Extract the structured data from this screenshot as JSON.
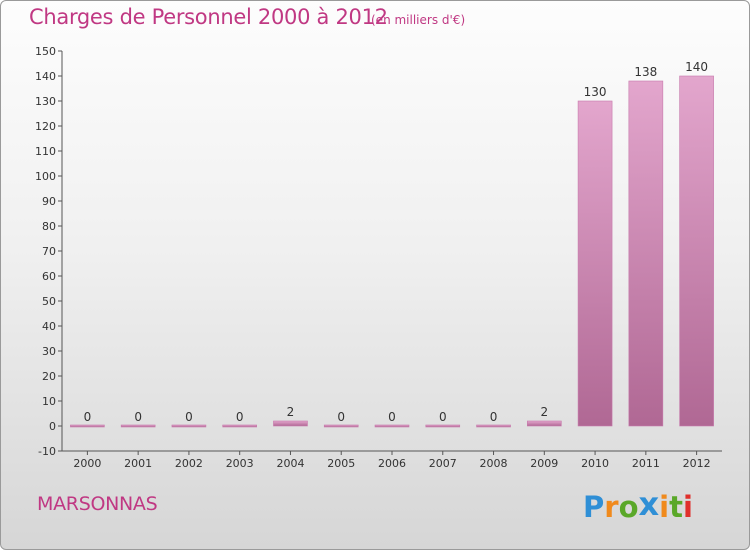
{
  "title": "Charges de Personnel 2000 à 2012",
  "subtitle": "(en milliers d'€)",
  "commune": "MARSONNAS",
  "logo": {
    "letters": [
      "P",
      "r",
      "o",
      "x",
      "i",
      "t",
      "i"
    ],
    "colors": [
      "#2f8fd6",
      "#f08a1c",
      "#5aa829",
      "#2f8fd6",
      "#f08a1c",
      "#5aa829",
      "#e0302c"
    ]
  },
  "chart_data": {
    "type": "bar",
    "categories": [
      "2000",
      "2001",
      "2002",
      "2003",
      "2004",
      "2005",
      "2006",
      "2007",
      "2008",
      "2009",
      "2010",
      "2011",
      "2012"
    ],
    "values": [
      0,
      0,
      0,
      0,
      2,
      0,
      0,
      0,
      0,
      2,
      130,
      138,
      140
    ],
    "ylim": [
      -10,
      150
    ],
    "ytick_step": 10,
    "grid": false,
    "colors": {
      "bar": "#d98cbd",
      "bar_dark": "#b36a99",
      "text": "#c03883"
    }
  }
}
